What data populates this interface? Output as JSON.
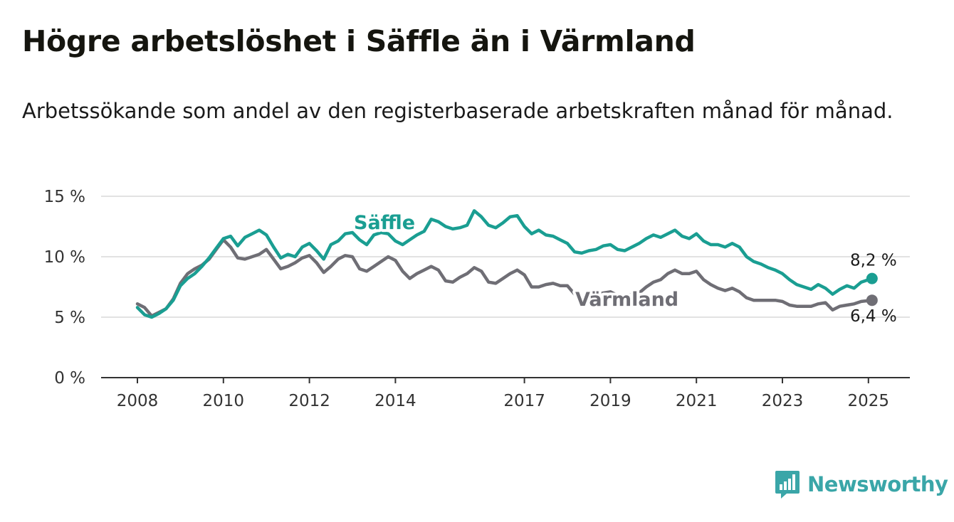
{
  "header": {
    "title": "Högre arbetslöshet i Säffle än i Värmland",
    "subtitle": "Arbetssökande som andel av den registerbaserade arbetskraften månad för månad."
  },
  "logo": {
    "text": "Newsworthy",
    "icon": "bar-chart-icon",
    "color": "#3aa6a8"
  },
  "chart_data": {
    "type": "line",
    "x_axis": {
      "ticks": [
        "2008",
        "2010",
        "2012",
        "2014",
        "2017",
        "2019",
        "2021",
        "2023",
        "2025"
      ],
      "range": [
        "2008-01",
        "2025-02"
      ]
    },
    "y_axis": {
      "ticks": [
        "0 %",
        "5 %",
        "10 %",
        "15 %"
      ],
      "range": [
        0,
        15
      ]
    },
    "grid": true,
    "series": [
      {
        "name": "Säffle",
        "color": "#1a9e92",
        "end_label": "8,2 %",
        "points": [
          [
            "2008-01",
            5.8
          ],
          [
            "2008-03",
            5.2
          ],
          [
            "2008-05",
            5.0
          ],
          [
            "2008-07",
            5.3
          ],
          [
            "2008-09",
            5.7
          ],
          [
            "2008-11",
            6.4
          ],
          [
            "2009-01",
            7.6
          ],
          [
            "2009-03",
            8.2
          ],
          [
            "2009-05",
            8.6
          ],
          [
            "2009-07",
            9.2
          ],
          [
            "2009-09",
            9.9
          ],
          [
            "2009-11",
            10.7
          ],
          [
            "2010-01",
            11.5
          ],
          [
            "2010-03",
            11.7
          ],
          [
            "2010-05",
            10.9
          ],
          [
            "2010-07",
            11.6
          ],
          [
            "2010-09",
            11.9
          ],
          [
            "2010-11",
            12.2
          ],
          [
            "2011-01",
            11.8
          ],
          [
            "2011-03",
            10.8
          ],
          [
            "2011-05",
            9.9
          ],
          [
            "2011-07",
            10.2
          ],
          [
            "2011-09",
            10.0
          ],
          [
            "2011-11",
            10.8
          ],
          [
            "2012-01",
            11.1
          ],
          [
            "2012-03",
            10.5
          ],
          [
            "2012-05",
            9.8
          ],
          [
            "2012-07",
            11.0
          ],
          [
            "2012-09",
            11.3
          ],
          [
            "2012-11",
            11.9
          ],
          [
            "2013-01",
            12.0
          ],
          [
            "2013-03",
            11.4
          ],
          [
            "2013-05",
            11.0
          ],
          [
            "2013-07",
            11.8
          ],
          [
            "2013-09",
            12.0
          ],
          [
            "2013-11",
            11.9
          ],
          [
            "2014-01",
            11.3
          ],
          [
            "2014-03",
            11.0
          ],
          [
            "2014-05",
            11.4
          ],
          [
            "2014-07",
            11.8
          ],
          [
            "2014-09",
            12.1
          ],
          [
            "2014-11",
            13.1
          ],
          [
            "2015-01",
            12.9
          ],
          [
            "2015-03",
            12.5
          ],
          [
            "2015-05",
            12.3
          ],
          [
            "2015-07",
            12.4
          ],
          [
            "2015-09",
            12.6
          ],
          [
            "2015-11",
            13.8
          ],
          [
            "2016-01",
            13.3
          ],
          [
            "2016-03",
            12.6
          ],
          [
            "2016-05",
            12.4
          ],
          [
            "2016-07",
            12.8
          ],
          [
            "2016-09",
            13.3
          ],
          [
            "2016-11",
            13.4
          ],
          [
            "2017-01",
            12.5
          ],
          [
            "2017-03",
            11.9
          ],
          [
            "2017-05",
            12.2
          ],
          [
            "2017-07",
            11.8
          ],
          [
            "2017-09",
            11.7
          ],
          [
            "2017-11",
            11.4
          ],
          [
            "2018-01",
            11.1
          ],
          [
            "2018-03",
            10.4
          ],
          [
            "2018-05",
            10.3
          ],
          [
            "2018-07",
            10.5
          ],
          [
            "2018-09",
            10.6
          ],
          [
            "2018-11",
            10.9
          ],
          [
            "2019-01",
            11.0
          ],
          [
            "2019-03",
            10.6
          ],
          [
            "2019-05",
            10.5
          ],
          [
            "2019-07",
            10.8
          ],
          [
            "2019-09",
            11.1
          ],
          [
            "2019-11",
            11.5
          ],
          [
            "2020-01",
            11.8
          ],
          [
            "2020-03",
            11.6
          ],
          [
            "2020-05",
            11.9
          ],
          [
            "2020-07",
            12.2
          ],
          [
            "2020-09",
            11.7
          ],
          [
            "2020-11",
            11.5
          ],
          [
            "2021-01",
            11.9
          ],
          [
            "2021-03",
            11.3
          ],
          [
            "2021-05",
            11.0
          ],
          [
            "2021-07",
            11.0
          ],
          [
            "2021-09",
            10.8
          ],
          [
            "2021-11",
            11.1
          ],
          [
            "2022-01",
            10.8
          ],
          [
            "2022-03",
            10.0
          ],
          [
            "2022-05",
            9.6
          ],
          [
            "2022-07",
            9.4
          ],
          [
            "2022-09",
            9.1
          ],
          [
            "2022-11",
            8.9
          ],
          [
            "2023-01",
            8.6
          ],
          [
            "2023-03",
            8.1
          ],
          [
            "2023-05",
            7.7
          ],
          [
            "2023-07",
            7.5
          ],
          [
            "2023-09",
            7.3
          ],
          [
            "2023-11",
            7.7
          ],
          [
            "2024-01",
            7.4
          ],
          [
            "2024-03",
            6.9
          ],
          [
            "2024-05",
            7.3
          ],
          [
            "2024-07",
            7.6
          ],
          [
            "2024-09",
            7.4
          ],
          [
            "2024-11",
            7.9
          ],
          [
            "2025-02",
            8.2
          ]
        ]
      },
      {
        "name": "Värmland",
        "color": "#6f6e75",
        "end_label": "6,4 %",
        "points": [
          [
            "2008-01",
            6.1
          ],
          [
            "2008-03",
            5.8
          ],
          [
            "2008-05",
            5.1
          ],
          [
            "2008-07",
            5.4
          ],
          [
            "2008-09",
            5.7
          ],
          [
            "2008-11",
            6.5
          ],
          [
            "2009-01",
            7.8
          ],
          [
            "2009-03",
            8.6
          ],
          [
            "2009-05",
            9.0
          ],
          [
            "2009-07",
            9.3
          ],
          [
            "2009-09",
            9.8
          ],
          [
            "2009-11",
            10.6
          ],
          [
            "2010-01",
            11.4
          ],
          [
            "2010-03",
            10.8
          ],
          [
            "2010-05",
            9.9
          ],
          [
            "2010-07",
            9.8
          ],
          [
            "2010-09",
            10.0
          ],
          [
            "2010-11",
            10.2
          ],
          [
            "2011-01",
            10.6
          ],
          [
            "2011-03",
            9.8
          ],
          [
            "2011-05",
            9.0
          ],
          [
            "2011-07",
            9.2
          ],
          [
            "2011-09",
            9.5
          ],
          [
            "2011-11",
            9.9
          ],
          [
            "2012-01",
            10.1
          ],
          [
            "2012-03",
            9.5
          ],
          [
            "2012-05",
            8.7
          ],
          [
            "2012-07",
            9.2
          ],
          [
            "2012-09",
            9.8
          ],
          [
            "2012-11",
            10.1
          ],
          [
            "2013-01",
            10.0
          ],
          [
            "2013-03",
            9.0
          ],
          [
            "2013-05",
            8.8
          ],
          [
            "2013-07",
            9.2
          ],
          [
            "2013-09",
            9.6
          ],
          [
            "2013-11",
            10.0
          ],
          [
            "2014-01",
            9.7
          ],
          [
            "2014-03",
            8.8
          ],
          [
            "2014-05",
            8.2
          ],
          [
            "2014-07",
            8.6
          ],
          [
            "2014-09",
            8.9
          ],
          [
            "2014-11",
            9.2
          ],
          [
            "2015-01",
            8.9
          ],
          [
            "2015-03",
            8.0
          ],
          [
            "2015-05",
            7.9
          ],
          [
            "2015-07",
            8.3
          ],
          [
            "2015-09",
            8.6
          ],
          [
            "2015-11",
            9.1
          ],
          [
            "2016-01",
            8.8
          ],
          [
            "2016-03",
            7.9
          ],
          [
            "2016-05",
            7.8
          ],
          [
            "2016-07",
            8.2
          ],
          [
            "2016-09",
            8.6
          ],
          [
            "2016-11",
            8.9
          ],
          [
            "2017-01",
            8.5
          ],
          [
            "2017-03",
            7.5
          ],
          [
            "2017-05",
            7.5
          ],
          [
            "2017-07",
            7.7
          ],
          [
            "2017-09",
            7.8
          ],
          [
            "2017-11",
            7.6
          ],
          [
            "2018-01",
            7.6
          ],
          [
            "2018-03",
            6.9
          ],
          [
            "2018-05",
            6.8
          ],
          [
            "2018-07",
            6.8
          ],
          [
            "2018-09",
            6.9
          ],
          [
            "2018-11",
            7.0
          ],
          [
            "2019-01",
            7.1
          ],
          [
            "2019-03",
            6.8
          ],
          [
            "2019-05",
            6.7
          ],
          [
            "2019-07",
            6.9
          ],
          [
            "2019-09",
            7.0
          ],
          [
            "2019-11",
            7.5
          ],
          [
            "2020-01",
            7.9
          ],
          [
            "2020-03",
            8.1
          ],
          [
            "2020-05",
            8.6
          ],
          [
            "2020-07",
            8.9
          ],
          [
            "2020-09",
            8.6
          ],
          [
            "2020-11",
            8.6
          ],
          [
            "2021-01",
            8.8
          ],
          [
            "2021-03",
            8.1
          ],
          [
            "2021-05",
            7.7
          ],
          [
            "2021-07",
            7.4
          ],
          [
            "2021-09",
            7.2
          ],
          [
            "2021-11",
            7.4
          ],
          [
            "2022-01",
            7.1
          ],
          [
            "2022-03",
            6.6
          ],
          [
            "2022-05",
            6.4
          ],
          [
            "2022-07",
            6.4
          ],
          [
            "2022-09",
            6.4
          ],
          [
            "2022-11",
            6.4
          ],
          [
            "2023-01",
            6.3
          ],
          [
            "2023-03",
            6.0
          ],
          [
            "2023-05",
            5.9
          ],
          [
            "2023-07",
            5.9
          ],
          [
            "2023-09",
            5.9
          ],
          [
            "2023-11",
            6.1
          ],
          [
            "2024-01",
            6.2
          ],
          [
            "2024-03",
            5.6
          ],
          [
            "2024-05",
            5.9
          ],
          [
            "2024-07",
            6.0
          ],
          [
            "2024-09",
            6.1
          ],
          [
            "2024-11",
            6.3
          ],
          [
            "2025-02",
            6.4
          ]
        ]
      }
    ]
  }
}
